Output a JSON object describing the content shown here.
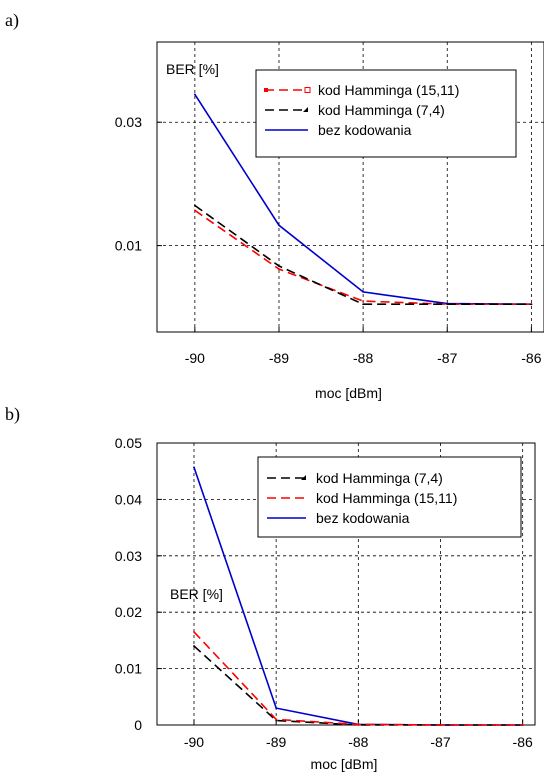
{
  "panels": [
    {
      "label": "a)",
      "chart_data": {
        "type": "line",
        "ylabel": "BER [%]",
        "xlabel": "moc [dBm]",
        "x": [
          -90,
          -89,
          -88,
          -87,
          -86
        ],
        "xticks": [
          "-90",
          "-89",
          "-88",
          "-87",
          "-86"
        ],
        "yticks": [
          {
            "value": 0.03,
            "label": "0.03"
          },
          {
            "value": 0.01,
            "label": "0.01"
          }
        ],
        "xlim": [
          -90.45,
          -85.85
        ],
        "ylim": [
          -0.004,
          0.043
        ],
        "grid": true,
        "legend_position": "top-right",
        "series": [
          {
            "name": "kod Hamminga (15,11)",
            "values": [
              0.0157,
              0.0062,
              0.001,
              0.0005,
              0.0005
            ],
            "color": "#ff0000",
            "style": "dashed",
            "marker": "square"
          },
          {
            "name": "kod Hamminga (7,4)",
            "values": [
              0.0165,
              0.0067,
              0.0005,
              0.0005,
              0.0005
            ],
            "color": "#000000",
            "style": "dashed",
            "marker": "triangle"
          },
          {
            "name": "bez kodowania",
            "values": [
              0.0345,
              0.0133,
              0.0025,
              0.0006,
              0.0005
            ],
            "color": "#0000cc",
            "style": "solid",
            "marker": "none"
          }
        ]
      }
    },
    {
      "label": "b)",
      "chart_data": {
        "type": "line",
        "ylabel": "BER [%]",
        "xlabel": "moc [dBm]",
        "x": [
          -90,
          -89,
          -88,
          -87,
          -86
        ],
        "xticks": [
          "-90",
          "-89",
          "-88",
          "-87",
          "-86"
        ],
        "yticks": [
          {
            "value": 0,
            "label": "0"
          },
          {
            "value": 0.01,
            "label": "0.01"
          },
          {
            "value": 0.02,
            "label": "0.02"
          },
          {
            "value": 0.03,
            "label": "0.03"
          },
          {
            "value": 0.04,
            "label": "0.04"
          },
          {
            "value": 0.05,
            "label": "0.05"
          }
        ],
        "xlim": [
          -90.45,
          -85.85
        ],
        "ylim": [
          0,
          0.05
        ],
        "grid": true,
        "legend_position": "top-right",
        "series": [
          {
            "name": "kod Hamminga (7,4)",
            "values": [
              0.014,
              0.0008,
              0.0,
              0.0,
              0.0
            ],
            "color": "#000000",
            "style": "dashed",
            "marker": "triangle"
          },
          {
            "name": "kod Hamminga (15,11)",
            "values": [
              0.0165,
              0.001,
              0.0001,
              0.0,
              0.0
            ],
            "color": "#ff0000",
            "style": "dashed",
            "marker": "none"
          },
          {
            "name": "bez kodowania",
            "values": [
              0.0457,
              0.003,
              0.0001,
              0.0,
              0.0
            ],
            "color": "#0000cc",
            "style": "solid",
            "marker": "none"
          }
        ]
      }
    }
  ]
}
